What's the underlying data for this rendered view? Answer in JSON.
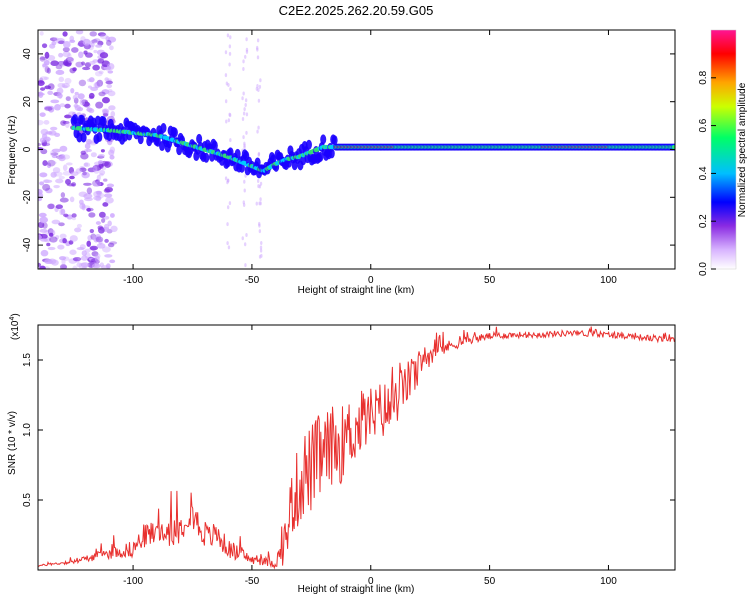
{
  "title": "C2E2.2025.262.20.59.G05",
  "chart_data": [
    {
      "type": "heatmap",
      "panel": "spectrogram",
      "xlabel": "Height of straight line (km)",
      "ylabel": "Frequency (Hz)",
      "xlim": [
        -140,
        128
      ],
      "ylim": [
        -50,
        50
      ],
      "x_ticks": [
        -100,
        -50,
        0,
        50,
        100
      ],
      "y_ticks": [
        -40,
        -20,
        0,
        20,
        40
      ],
      "grid": false,
      "ridge": {
        "x": [
          -125,
          -110,
          -100,
          -90,
          -80,
          -70,
          -60,
          -50,
          -45,
          -40,
          -35,
          -30,
          -25,
          -20,
          -10,
          0,
          10,
          30,
          50,
          80,
          100,
          110,
          128
        ],
        "y": [
          9,
          8,
          7,
          6,
          3,
          0,
          -3,
          -7,
          -9,
          -6,
          -4,
          -3,
          -1,
          1,
          1,
          1,
          1,
          1,
          1,
          1,
          1,
          1,
          1
        ]
      },
      "colorbar": {
        "label": "Normalized spectral amplitude",
        "ticks": [
          0.0,
          0.2,
          0.4,
          0.6,
          0.8
        ],
        "tick_labels": [
          "0.0",
          "0.2",
          "0.4",
          "0.6",
          "0.8"
        ],
        "range": [
          0,
          1
        ],
        "colors": [
          "#ffffff",
          "#d8b4ff",
          "#8a2be2",
          "#0000ff",
          "#00bfff",
          "#00ff66",
          "#ccff00",
          "#ffa500",
          "#ff0000",
          "#ff1493"
        ]
      }
    },
    {
      "type": "line",
      "panel": "snr",
      "xlabel": "Height of straight line (km)",
      "ylabel": "SNR (10 * v/v)",
      "multiplier_label": "(x10",
      "multiplier_exp": "4",
      "xlim": [
        -140,
        128
      ],
      "ylim": [
        0,
        17500
      ],
      "x_ticks": [
        -100,
        -50,
        0,
        50,
        100
      ],
      "y_ticks": [
        5000,
        10000,
        15000
      ],
      "y_tick_labels": [
        "0.5",
        "1.0",
        "1.5"
      ],
      "grid": false,
      "series": [
        {
          "name": "SNR",
          "color": "#e8302e",
          "x": [
            -140,
            -125,
            -110,
            -100,
            -95,
            -90,
            -85,
            -80,
            -76,
            -72,
            -68,
            -65,
            -60,
            -55,
            -50,
            -45,
            -40,
            -37,
            -35,
            -33,
            -30,
            -28,
            -26,
            -24,
            -22,
            -20,
            -18,
            -16,
            -14,
            -12,
            -10,
            -8,
            -6,
            -4,
            -2,
            0,
            2,
            4,
            6,
            8,
            10,
            12,
            14,
            16,
            18,
            20,
            22,
            24,
            26,
            28,
            30,
            35,
            40,
            50,
            60,
            70,
            80,
            90,
            100,
            110,
            120,
            128
          ],
          "y": [
            300,
            600,
            1200,
            1500,
            2500,
            2600,
            2800,
            3000,
            4500,
            3000,
            2300,
            2600,
            1500,
            1200,
            700,
            600,
            500,
            1500,
            3000,
            5000,
            6000,
            7000,
            7000,
            7500,
            8000,
            8000,
            8500,
            9000,
            8800,
            9000,
            9500,
            10000,
            10000,
            10500,
            11000,
            11000,
            11000,
            11300,
            11500,
            11500,
            12000,
            12500,
            13000,
            13500,
            14000,
            14000,
            14800,
            15300,
            15500,
            15700,
            15800,
            16100,
            16400,
            16700,
            16800,
            16800,
            16900,
            16900,
            16800,
            16700,
            16500,
            16500
          ],
          "noise": [
            50,
            150,
            400,
            600,
            900,
            900,
            1100,
            1100,
            1300,
            1100,
            900,
            900,
            700,
            500,
            300,
            300,
            400,
            1200,
            2000,
            2600,
            3000,
            3200,
            3300,
            3200,
            3200,
            3000,
            3000,
            2800,
            2800,
            2800,
            2600,
            2600,
            2400,
            2400,
            2400,
            2200,
            2200,
            2200,
            2000,
            2000,
            1800,
            1800,
            1600,
            1500,
            1400,
            1300,
            1100,
            900,
            700,
            600,
            500,
            400,
            300,
            250,
            220,
            220,
            220,
            220,
            220,
            220,
            220,
            220
          ]
        }
      ]
    }
  ]
}
